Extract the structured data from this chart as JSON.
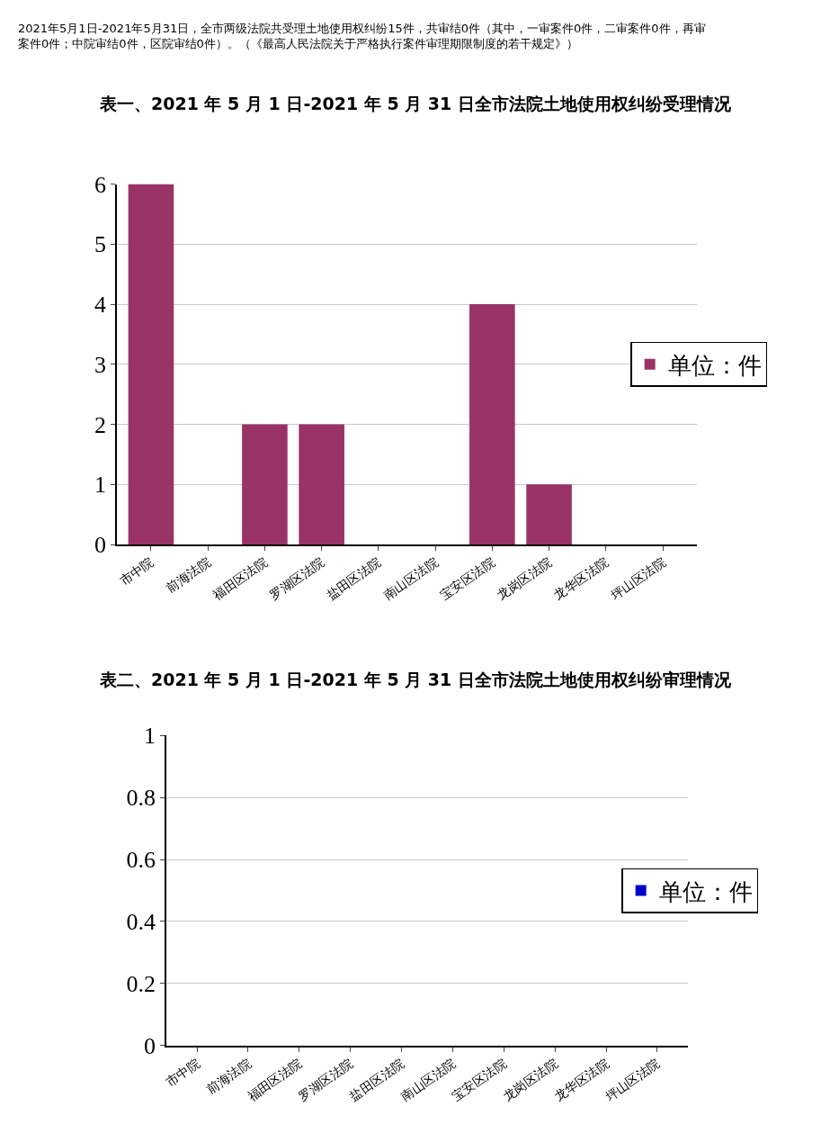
{
  "chart_data": [
    {
      "type": "bar",
      "title": "表一、2021 年 5 月 1 日-2021 年 5 月 31 日全市法院土地使用权纠纷受理情况",
      "annotations": [
        "2021年5月1日-2021年5月31日，全市两级法院共受理土地使用权纠纷15件，共审结0件（其中，一审案件0件，二审案件0件，再审案件0件；中院审结0件，区院审结0件）。（《最高人民法院关于严格执行案件审理期限制度的若干规定》）"
      ],
      "categories": [
        "市中院",
        "前海法院",
        "福田区法院",
        "罗湖区法院",
        "盐田区法院",
        "南山区法院",
        "宝安区法院",
        "龙岗区法院",
        "龙华区法院",
        "坪山区法院"
      ],
      "series": [
        {
          "name": "单位：件",
          "color": "#993366",
          "values": [
            6,
            0,
            2,
            2,
            0,
            0,
            4,
            1,
            0,
            0
          ]
        }
      ],
      "ylim": [
        0,
        6
      ],
      "yticks": [
        0,
        1,
        2,
        3,
        4,
        5,
        6
      ],
      "grid": "y",
      "legend": "right"
    },
    {
      "type": "bar",
      "title": "表二、2021 年 5 月 1 日-2021 年 5 月 31 日全市法院土地使用权纠纷审理情况",
      "categories": [
        "市中院",
        "前海法院",
        "福田区法院",
        "罗湖区法院",
        "盐田区法院",
        "南山区法院",
        "宝安区法院",
        "龙岗区法院",
        "龙华区法院",
        "坪山区法院"
      ],
      "series": [
        {
          "name": "单位：件",
          "color": "#0000cc",
          "values": [
            0,
            0,
            0,
            0,
            0,
            0,
            0,
            0,
            0,
            0
          ]
        }
      ],
      "ylim": [
        0,
        1
      ],
      "yticks": [
        0,
        0.2,
        0.4,
        0.6,
        0.8,
        1
      ],
      "grid": "y",
      "legend": "right"
    }
  ]
}
